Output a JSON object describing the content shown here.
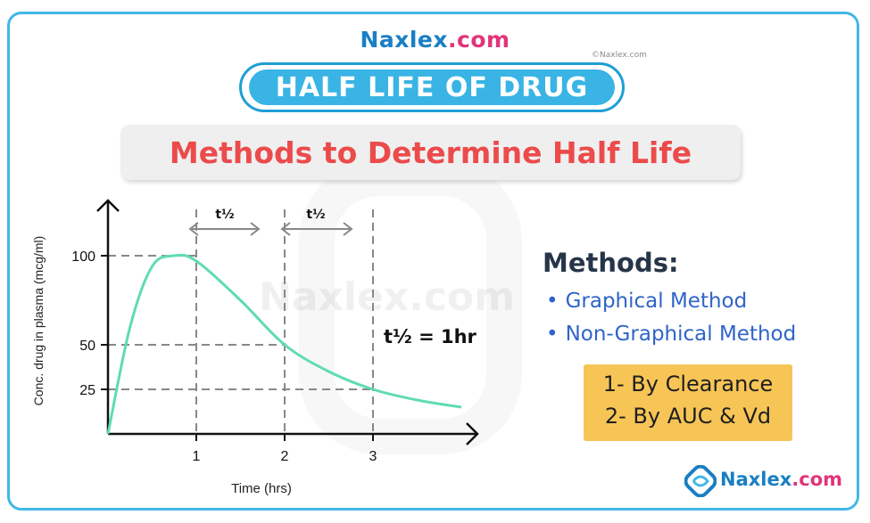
{
  "brand": {
    "name": "Naxlex",
    "tld": ".com",
    "copyright": "©Naxlex.com"
  },
  "title": "HALF LIFE OF DRUG",
  "subtitle": "Methods to Determine Half Life",
  "watermark": "Naxlex.com",
  "chart": {
    "ylabel": "Conc. drug in plasma (mcg/ml)",
    "xlabel": "Time (hrs)",
    "y_ticks": [
      "100",
      "50",
      "25"
    ],
    "x_ticks": [
      "1",
      "2",
      "3"
    ],
    "half_life_label": "t½",
    "equation": "t½ = 1hr"
  },
  "chart_data": {
    "type": "line",
    "xlabel": "Time (hrs)",
    "ylabel": "Conc. drug in plasma (mcg/ml)",
    "x_ticks": [
      1,
      2,
      3
    ],
    "y_ticks": [
      100,
      50,
      25
    ],
    "series": [
      {
        "x": [
          0,
          0.25,
          0.5,
          0.75,
          1,
          1.5,
          2,
          2.5,
          3,
          3.5,
          4
        ],
        "y": [
          0,
          60,
          94,
          100,
          97,
          75,
          50,
          35,
          25,
          19,
          15
        ]
      }
    ],
    "reference_lines": {
      "y": [
        100,
        50,
        25
      ],
      "x": [
        1,
        2,
        3
      ]
    },
    "annotation": "t½ = 1hr",
    "color": "#5fdcb0"
  },
  "methods": {
    "title": "Methods:",
    "items": [
      "Graphical Method",
      "Non-Graphical Method"
    ],
    "non_graphical": [
      "1- By Clearance",
      "2- By AUC & Vd"
    ]
  },
  "footer": {
    "name": "Naxlex",
    "tld": ".com"
  },
  "colors": {
    "accent": "#39b4e4",
    "subtitle": "#ec4b4b",
    "method": "#2f64c8",
    "highlight": "#f7c556",
    "brand_blue": "#1a7fc4",
    "brand_pink": "#e0357a"
  }
}
